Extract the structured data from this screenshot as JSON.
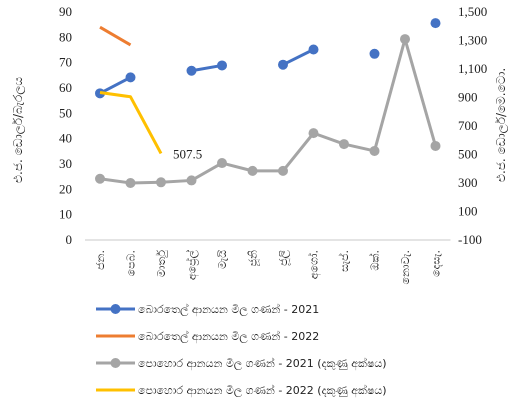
{
  "chart_data": {
    "type": "line",
    "categories": [
      "ජන.",
      "පෙබ.",
      "මාර්තු",
      "අප්‍රේල්",
      "මැයි",
      "ජූනි",
      "ජූලි",
      "අගෝ.",
      "සැප්.",
      "ඔක්.",
      "නොවැ.",
      "දෙසැ."
    ],
    "y_left": {
      "label": "එ.ජ. ඩොලර්/බැරලය",
      "ylim": [
        0,
        90
      ],
      "ticks": [
        "0",
        "10",
        "20",
        "30",
        "40",
        "50",
        "60",
        "70",
        "80",
        "90"
      ]
    },
    "y_right": {
      "label": "එ.ජ. ඩොලර්/මෙ.ටො.",
      "ylim": [
        -100,
        1500
      ],
      "ticks": [
        "-100",
        "100",
        "300",
        "500",
        "700",
        "900",
        "1,100",
        "1,300",
        "1,500"
      ]
    },
    "series": [
      {
        "name": "බොරතෙල් ආනයන මිල ගණන් - 2021",
        "axis": "left",
        "color": "#4472C4",
        "values": [
          57.9,
          64.2,
          null,
          66.8,
          68.9,
          null,
          69.2,
          75.2,
          null,
          73.5,
          null,
          85.6
        ]
      },
      {
        "name": "බොරතෙල් ආනයන මිල ගණන් - 2022",
        "axis": "left",
        "color": "#ED7D31",
        "values": [
          84.0,
          77.0,
          null,
          null,
          null,
          null,
          null,
          null,
          null,
          null,
          null,
          null
        ]
      },
      {
        "name": "පොහොර ආනයන මිල ගණන් - 2021 (දකුණු අක්ෂය)",
        "axis": "right",
        "color": "#A5A5A5",
        "values": [
          330,
          300,
          305,
          318,
          440,
          385,
          385,
          650,
          573,
          525,
          1310,
          560
        ]
      },
      {
        "name": "පොහොර ආනයන මිල ගණන් - 2022 (දකුණු අක්ෂය)",
        "axis": "right",
        "color": "#FFC000",
        "values": [
          935,
          905,
          507.5,
          null,
          null,
          null,
          null,
          null,
          null,
          null,
          null,
          null
        ]
      }
    ],
    "annotations": [
      {
        "text": "507.5",
        "series": 3,
        "index": 2
      }
    ],
    "legend": "bottom",
    "grid": false
  }
}
